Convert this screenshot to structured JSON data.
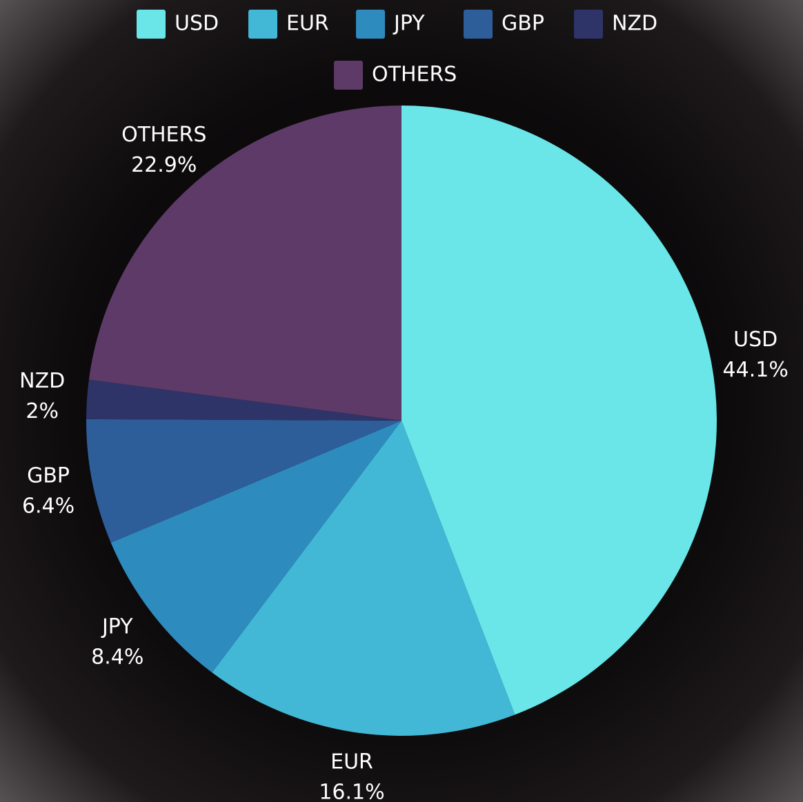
{
  "chart_data": {
    "type": "pie",
    "categories": [
      "USD",
      "EUR",
      "JPY",
      "GBP",
      "NZD",
      "OTHERS"
    ],
    "values": [
      44.1,
      16.1,
      8.4,
      6.4,
      2,
      22.9
    ],
    "value_labels": [
      "44.1%",
      "16.1%",
      "8.4%",
      "6.4%",
      "2%",
      "22.9%"
    ],
    "colors": [
      "#6ae5e8",
      "#42b8d6",
      "#2e8bbd",
      "#2e5e9a",
      "#2f3468",
      "#5e3a68"
    ],
    "legend": "top"
  }
}
